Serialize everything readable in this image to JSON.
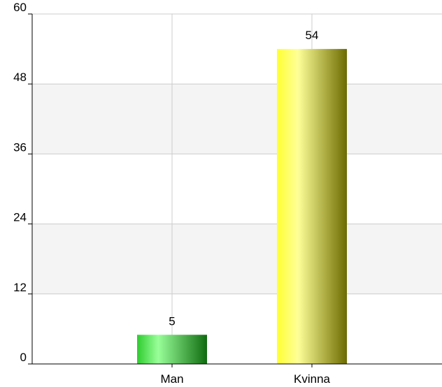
{
  "chart_data": {
    "type": "bar",
    "categories": [
      "Man",
      "Kvinna"
    ],
    "values": [
      5,
      54
    ],
    "ylim": [
      0,
      60
    ],
    "yticks": [
      0,
      12,
      24,
      36,
      48,
      60
    ],
    "grid": true,
    "bar_colors": [
      {
        "base": "#2ecc2e",
        "light": "#99ff99",
        "dark": "#0f6b0f"
      },
      {
        "base": "#ffff33",
        "light": "#ffff99",
        "dark": "#6b6b00"
      }
    ],
    "band_color": "#f4f4f4",
    "grid_color": "#cccccc"
  }
}
